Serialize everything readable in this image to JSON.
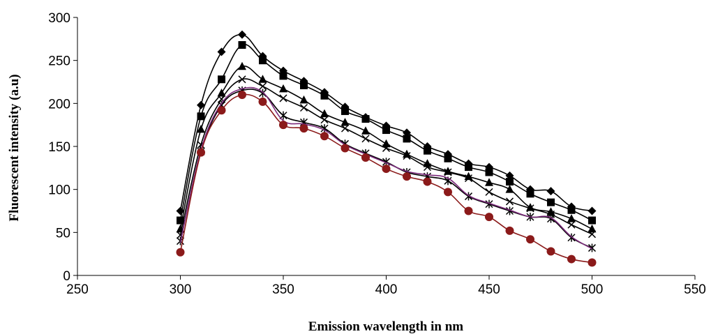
{
  "chart_data": {
    "type": "line",
    "title": "",
    "xlabel": "Emission wavelength in nm",
    "ylabel": "Fluorescent intensity (a.u)",
    "xlim": [
      250,
      550
    ],
    "ylim": [
      0,
      300
    ],
    "xticks": [
      250,
      300,
      350,
      400,
      450,
      500,
      550
    ],
    "yticks": [
      0,
      50,
      100,
      150,
      200,
      250,
      300
    ],
    "grid": false,
    "legend": "none",
    "x": [
      300,
      310,
      320,
      330,
      340,
      350,
      360,
      370,
      380,
      390,
      400,
      410,
      420,
      430,
      440,
      450,
      460,
      470,
      480,
      490,
      500
    ],
    "series": [
      {
        "marker": "diamond",
        "color": "#000000",
        "values": [
          75,
          198,
          260,
          280,
          255,
          238,
          226,
          213,
          196,
          184,
          174,
          166,
          150,
          141,
          130,
          126,
          116,
          100,
          98,
          80,
          75
        ]
      },
      {
        "marker": "square",
        "color": "#000000",
        "values": [
          64,
          185,
          228,
          268,
          250,
          232,
          221,
          209,
          191,
          182,
          169,
          159,
          145,
          136,
          126,
          120,
          109,
          95,
          85,
          76,
          64
        ]
      },
      {
        "marker": "triangle",
        "color": "#000000",
        "values": [
          54,
          170,
          212,
          243,
          228,
          217,
          204,
          188,
          178,
          168,
          153,
          141,
          130,
          121,
          115,
          108,
          100,
          79,
          74,
          66,
          54
        ]
      },
      {
        "marker": "x",
        "color": "#000000",
        "values": [
          47,
          152,
          205,
          228,
          220,
          206,
          195,
          181,
          171,
          159,
          148,
          139,
          126,
          120,
          113,
          97,
          86,
          78,
          71,
          59,
          48
        ]
      },
      {
        "marker": "asterisk",
        "color": "#000000",
        "values": [
          40,
          144,
          198,
          215,
          212,
          186,
          178,
          171,
          153,
          142,
          132,
          120,
          115,
          110,
          92,
          83,
          75,
          68,
          66,
          44,
          32
        ]
      },
      {
        "marker": "none",
        "color": "#7b2a7b",
        "values": [
          38,
          146,
          200,
          217,
          213,
          180,
          176,
          169,
          152,
          141,
          131,
          121,
          117,
          113,
          93,
          84,
          76,
          68,
          67,
          45,
          31
        ]
      },
      {
        "marker": "circle",
        "color": "#8b1a1a",
        "values": [
          27,
          143,
          192,
          210,
          202,
          175,
          171,
          162,
          148,
          137,
          124,
          115,
          109,
          97,
          75,
          68,
          52,
          42,
          28,
          19,
          15
        ]
      }
    ]
  }
}
